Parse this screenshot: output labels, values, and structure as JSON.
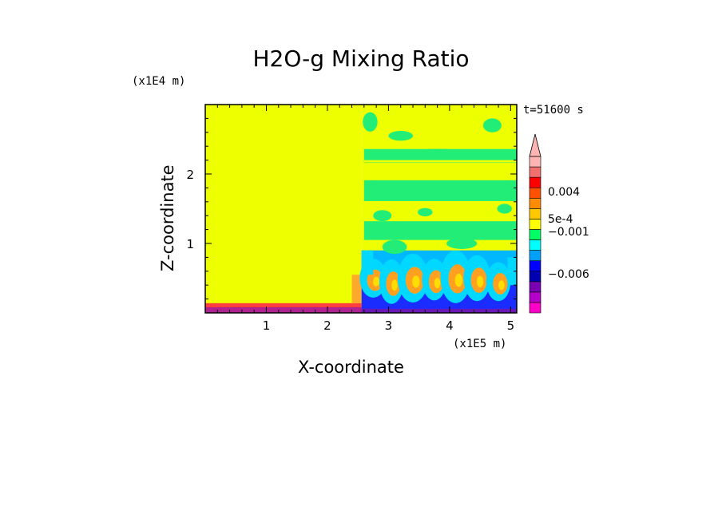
{
  "chart_data": {
    "type": "heatmap",
    "title": "H2O-g Mixing Ratio",
    "xlabel": "X-coordinate",
    "ylabel": "Z-coordinate",
    "x_scale_label": "(x1E5 m)",
    "y_scale_label": "(x1E4 m)",
    "time_label": "t=51600 s",
    "xlim": [
      0,
      5.1
    ],
    "ylim": [
      0,
      3.0
    ],
    "x_ticks": [
      "1",
      "2",
      "3",
      "4",
      "5"
    ],
    "x_tick_values": [
      1,
      2,
      3,
      4,
      5
    ],
    "y_ticks": [
      "1",
      "2"
    ],
    "y_tick_values": [
      1,
      2
    ],
    "colorbar": {
      "labels": [
        "0.004",
        "5e-4",
        "−0.001",
        "−0.006"
      ],
      "colors": [
        "#ff00c8",
        "#b400c8",
        "#7a00b4",
        "#0000b0",
        "#0000ff",
        "#00a0ff",
        "#00ffff",
        "#00ff64",
        "#ffff00",
        "#ffc800",
        "#ff8c00",
        "#ff5000",
        "#ff0000",
        "#f07070",
        "#ffb4b4"
      ]
    },
    "regions": [
      {
        "name": "left-domain",
        "x": [
          0,
          2.56
        ],
        "z": [
          0.06,
          3.0
        ],
        "field": "uniform",
        "color": "#eeff00"
      },
      {
        "name": "right-domain",
        "x": [
          2.56,
          5.1
        ],
        "z": [
          0,
          3.0
        ],
        "field": "mixed",
        "color": "#eeff00"
      },
      {
        "name": "upper-band-1",
        "x": [
          2.6,
          5.1
        ],
        "z": [
          2.16,
          2.36
        ],
        "field": "green",
        "color": "#22ee77"
      },
      {
        "name": "upper-band-2",
        "x": [
          2.6,
          5.1
        ],
        "z": [
          1.61,
          1.91
        ],
        "field": "green",
        "color": "#22ee77"
      },
      {
        "name": "mid-band",
        "x": [
          2.6,
          5.1
        ],
        "z": [
          1.05,
          1.32
        ],
        "field": "green",
        "color": "#22ee77"
      },
      {
        "name": "lower-turbulent",
        "x": [
          2.56,
          5.1
        ],
        "z": [
          0,
          0.9
        ],
        "field": "turbulent",
        "color": "#00b8ff"
      },
      {
        "name": "surface-layer",
        "x": [
          0,
          2.56
        ],
        "z": [
          0,
          0.12
        ],
        "field": "surface",
        "color": "#ff3c3c"
      }
    ]
  }
}
